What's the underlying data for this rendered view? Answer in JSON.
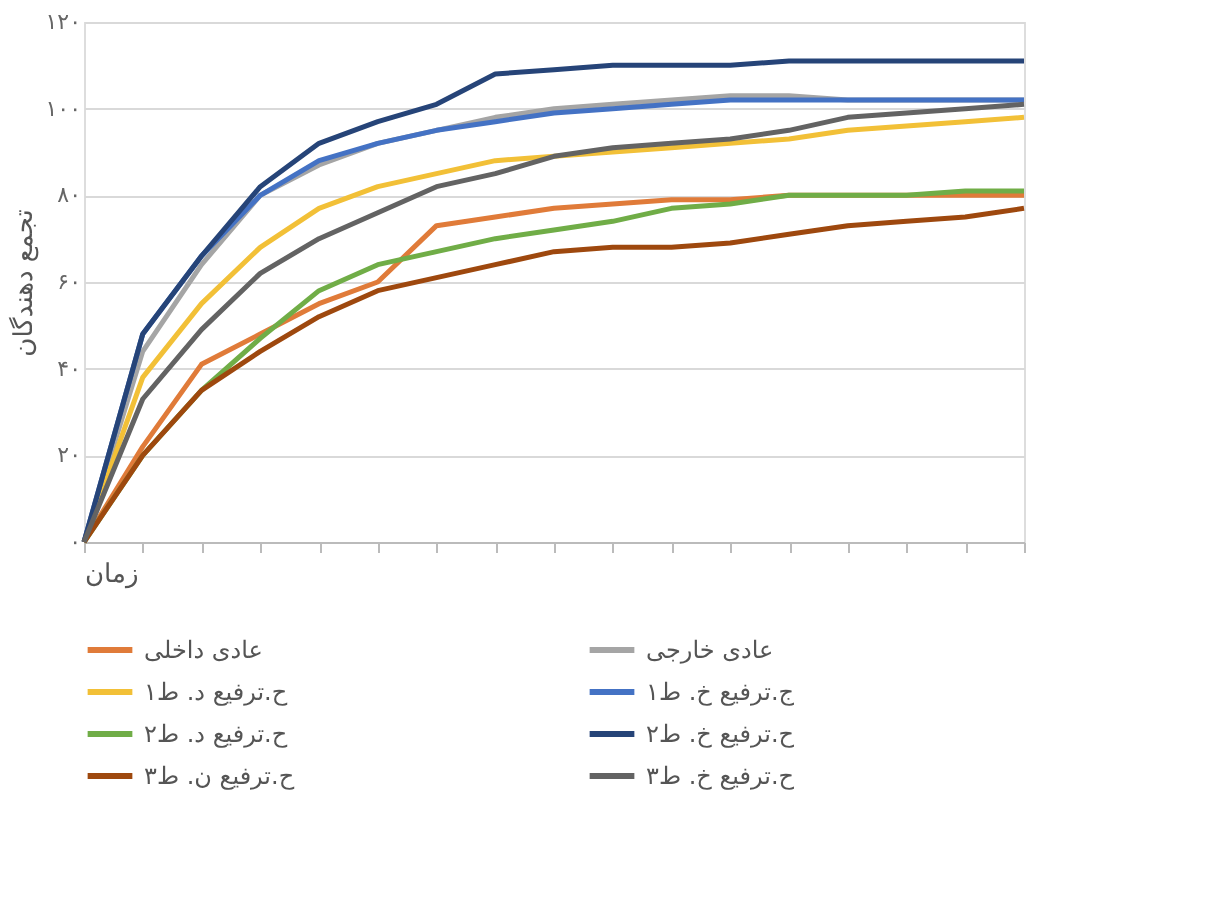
{
  "chart_data": {
    "type": "line",
    "ylabel": "تجمع دهندگان",
    "xlabel": "زمان",
    "categories": [
      null,
      null,
      null,
      null,
      null,
      null,
      null,
      null,
      null,
      null,
      null,
      null,
      null,
      null,
      null,
      null,
      null
    ],
    "ylim": [
      0,
      120
    ],
    "yticks": [
      {
        "value": 0,
        "label": "۰"
      },
      {
        "value": 20,
        "label": "۲۰"
      },
      {
        "value": 40,
        "label": "۴۰"
      },
      {
        "value": 60,
        "label": "۶۰"
      },
      {
        "value": 80,
        "label": "۸۰"
      },
      {
        "value": 100,
        "label": "۱۰۰"
      },
      {
        "value": 120,
        "label": "۱۲۰"
      }
    ],
    "tick_labels": "y",
    "grid": "y",
    "legend": "bottom",
    "line_style": "solid",
    "marker": "none",
    "series": [
      {
        "name": "عادی داخلی",
        "color": "#e07b39",
        "values": [
          0,
          22,
          41,
          48,
          55,
          60,
          73,
          75,
          77,
          78,
          79,
          79,
          80,
          80,
          80,
          80,
          80
        ]
      },
      {
        "name": "عادی خارجی",
        "color": "#a5a5a5",
        "values": [
          0,
          44,
          64,
          80,
          87,
          92,
          95,
          98,
          100,
          101,
          102,
          103,
          103,
          102,
          102,
          102,
          102
        ]
      },
      {
        "name": "ح.ترفیع د. ط۱",
        "color": "#f2c037",
        "values": [
          0,
          38,
          55,
          68,
          77,
          82,
          85,
          88,
          89,
          90,
          91,
          92,
          93,
          95,
          96,
          97,
          98
        ]
      },
      {
        "name": "ج.ترفیع خ. ط۱",
        "color": "#4472c4",
        "values": [
          0,
          48,
          66,
          80,
          88,
          92,
          95,
          97,
          99,
          100,
          101,
          102,
          102,
          102,
          102,
          102,
          102
        ]
      },
      {
        "name": "ح.ترفیع د. ط۲",
        "color": "#70ad47",
        "values": [
          0,
          20,
          35,
          47,
          58,
          64,
          67,
          70,
          72,
          74,
          77,
          78,
          80,
          80,
          80,
          81,
          81
        ]
      },
      {
        "name": "ح.ترفیع خ. ط۲",
        "color": "#264478",
        "values": [
          0,
          48,
          66,
          82,
          92,
          97,
          101,
          108,
          109,
          110,
          110,
          110,
          111,
          111,
          111,
          111,
          111
        ]
      },
      {
        "name": "ح.ترفیع ن. ط۳",
        "color": "#9e480e",
        "values": [
          0,
          20,
          35,
          44,
          52,
          58,
          61,
          64,
          67,
          68,
          68,
          69,
          71,
          73,
          74,
          75,
          77
        ]
      },
      {
        "name": "ح.ترفیع خ. ط۳",
        "color": "#636363",
        "values": [
          0,
          33,
          49,
          62,
          70,
          76,
          82,
          85,
          89,
          91,
          92,
          93,
          95,
          98,
          99,
          100,
          101
        ]
      }
    ]
  }
}
